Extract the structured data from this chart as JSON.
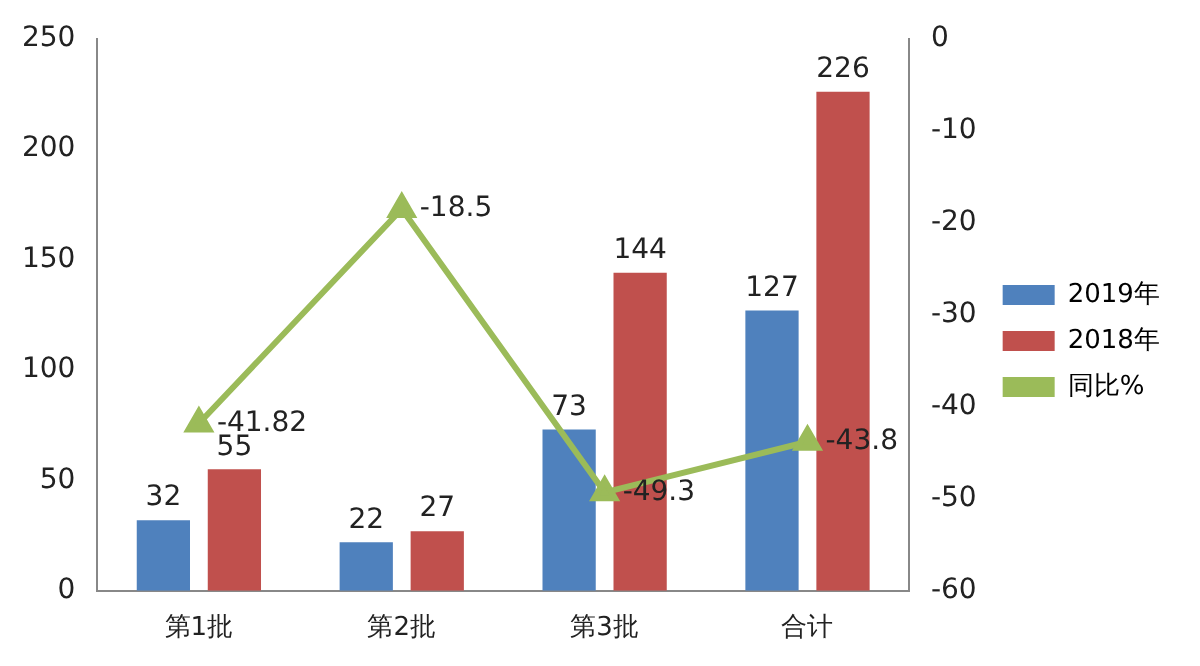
{
  "chart_data": {
    "type": "bar",
    "categories": [
      "第1批",
      "第2批",
      "第3批",
      "合计"
    ],
    "series": [
      {
        "name": "2019年",
        "color": "#4f81bd",
        "values": [
          32,
          22,
          73,
          127
        ]
      },
      {
        "name": "2018年",
        "color": "#c0504d",
        "values": [
          55,
          27,
          144,
          226
        ]
      },
      {
        "name": "同比%",
        "color": "#9bbb59",
        "type": "line",
        "axis": "y2",
        "marker": "triangle",
        "values": [
          -41.82,
          -18.5,
          -49.3,
          -43.8
        ]
      }
    ],
    "ylim": [
      0,
      250
    ],
    "yticks": [
      0,
      50,
      100,
      150,
      200,
      250
    ],
    "y2lim": [
      -60,
      0
    ],
    "y2ticks": [
      -60,
      -50,
      -40,
      -30,
      -20,
      -10,
      0
    ],
    "data_labels": true,
    "legend": "right",
    "grid": false
  }
}
